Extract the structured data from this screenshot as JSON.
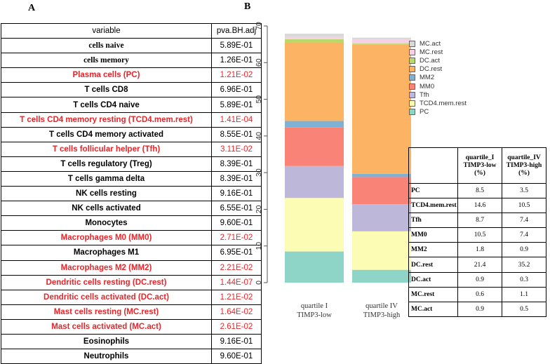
{
  "panel_a": {
    "letter": "A",
    "header": {
      "variable": "variable",
      "value": "pva.BH.adj"
    },
    "rows": [
      {
        "variable": "cells naive",
        "value": "5.89E-01",
        "sig": false,
        "serif": true
      },
      {
        "variable": "cells memory",
        "value": "1.26E-01",
        "sig": false,
        "serif": true
      },
      {
        "variable": "Plasma cells (PC)",
        "value": "1.21E-02",
        "sig": true,
        "serif": false
      },
      {
        "variable": "T cells CD8",
        "value": "6.96E-01",
        "sig": false,
        "serif": false
      },
      {
        "variable": "T cells CD4 naive",
        "value": "5.89E-01",
        "sig": false,
        "serif": false
      },
      {
        "variable": "T cells CD4 memory resting (TCD4.mem.rest)",
        "value": "1.41E-04",
        "sig": true,
        "serif": false
      },
      {
        "variable": "T cells CD4 memory activated",
        "value": "8.55E-01",
        "sig": false,
        "serif": false
      },
      {
        "variable": "T cells follicular helper (Tfh)",
        "value": "3.11E-02",
        "sig": true,
        "serif": false
      },
      {
        "variable": "T cells regulatory (Treg)",
        "value": "8.39E-01",
        "sig": false,
        "serif": false
      },
      {
        "variable": "T cells gamma delta",
        "value": "8.39E-01",
        "sig": false,
        "serif": false
      },
      {
        "variable": "NK cells resting",
        "value": "9.16E-01",
        "sig": false,
        "serif": false
      },
      {
        "variable": "NK cells activated",
        "value": "6.55E-01",
        "sig": false,
        "serif": false
      },
      {
        "variable": "Monocytes",
        "value": "9.60E-01",
        "sig": false,
        "serif": false
      },
      {
        "variable": "Macrophages M0 (MM0)",
        "value": "2.71E-02",
        "sig": true,
        "serif": false
      },
      {
        "variable": "Macrophages M1",
        "value": "6.95E-01",
        "sig": false,
        "serif": false
      },
      {
        "variable": "Macrophages M2 (MM2)",
        "value": "2.21E-02",
        "sig": true,
        "serif": false
      },
      {
        "variable": "Dendritic cells resting (DC.rest)",
        "value": "1.44E-07",
        "sig": true,
        "serif": false
      },
      {
        "variable": "Dendritic cells activated (DC.act)",
        "value": "1.21E-02",
        "sig": true,
        "serif": false
      },
      {
        "variable": "Mast cells resting (MC.rest)",
        "value": "1.64E-02",
        "sig": true,
        "serif": false
      },
      {
        "variable": "Mast cells activated (MC.act)",
        "value": "2.61E-02",
        "sig": true,
        "serif": false
      },
      {
        "variable": "Eosinophils",
        "value": "9.16E-01",
        "sig": false,
        "serif": false
      },
      {
        "variable": "Neutrophils",
        "value": "9.60E-01",
        "sig": false,
        "serif": false
      }
    ]
  },
  "panel_b": {
    "letter": "B",
    "colors": {
      "PC": "#8fd5c7",
      "TCD4.mem.rest": "#fdfcb4",
      "Tfh": "#bdb8d9",
      "MM0": "#f98377",
      "MM2": "#7fb1d5",
      "DC.rest": "#fcb464",
      "DC.act": "#b5db6b",
      "MC.rest": "#f9cfe4",
      "MC.act": "#d9d9d9"
    },
    "legend": [
      "MC.act",
      "MC.rest",
      "DC.act",
      "DC.rest",
      "MM2",
      "MM0",
      "Tfh",
      "TCD4.mem.rest",
      "PC"
    ],
    "table": {
      "col1": [
        "quartile_I",
        "TIMP3-low",
        "(%)"
      ],
      "col2": [
        "quartile_IV",
        "TIMP3-high",
        "(%)"
      ],
      "rows": [
        {
          "label": "PC",
          "low": "8.5",
          "high": "3.5"
        },
        {
          "label": "TCD4.mem.rest",
          "low": "14.6",
          "high": "10.5"
        },
        {
          "label": "Tfh",
          "low": "8.7",
          "high": "7.4"
        },
        {
          "label": "MM0",
          "low": "10.5",
          "high": "7.4"
        },
        {
          "label": "MM2",
          "low": "1.8",
          "high": "0.9"
        },
        {
          "label": "DC.rest",
          "low": "21.4",
          "high": "35.2"
        },
        {
          "label": "DC.act",
          "low": "0.9",
          "high": "0.3"
        },
        {
          "label": "MC.rest",
          "low": "0.6",
          "high": "1.1"
        },
        {
          "label": "MC.act",
          "low": "0.9",
          "high": "0.5"
        }
      ]
    }
  },
  "chart_data": {
    "type": "bar",
    "stacked": true,
    "categories": [
      [
        "quartile I",
        "TIMP3-low"
      ],
      [
        "quartile IV",
        "TIMP3-high"
      ]
    ],
    "series": [
      {
        "name": "PC",
        "values": [
          8.5,
          3.5
        ]
      },
      {
        "name": "TCD4.mem.rest",
        "values": [
          14.6,
          10.5
        ]
      },
      {
        "name": "Tfh",
        "values": [
          8.7,
          7.4
        ]
      },
      {
        "name": "MM0",
        "values": [
          10.5,
          7.4
        ]
      },
      {
        "name": "MM2",
        "values": [
          1.8,
          0.9
        ]
      },
      {
        "name": "DC.rest",
        "values": [
          21.4,
          35.2
        ]
      },
      {
        "name": "DC.act",
        "values": [
          0.9,
          0.3
        ]
      },
      {
        "name": "MC.rest",
        "values": [
          0.6,
          1.1
        ]
      },
      {
        "name": "MC.act",
        "values": [
          0.9,
          0.5
        ]
      }
    ],
    "yticks": [
      0,
      10,
      20,
      30,
      40,
      50,
      60,
      70
    ],
    "ylim": [
      0,
      70
    ],
    "grid": false,
    "legend_position": "right"
  }
}
